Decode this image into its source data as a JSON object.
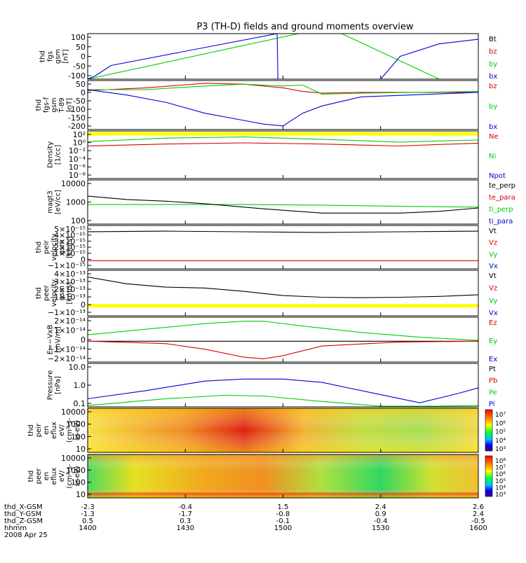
{
  "title": "P3 (TH-D) fields and ground moments overview",
  "colors": {
    "black": "#000000",
    "red": "#dd0000",
    "green": "#00cc00",
    "blue": "#0000dd",
    "yellow": "#ffff00"
  },
  "chart_data": [
    {
      "id": "fgs",
      "type": "line",
      "ylabel": [
        "thd",
        "fgs",
        "gsm",
        "[nT]"
      ],
      "yticks": [
        "100",
        "50",
        "0",
        "-50",
        "-100"
      ],
      "ylim": [
        -100,
        100
      ],
      "legend": [
        {
          "name": "Bt",
          "color": "black"
        },
        {
          "name": "bz",
          "color": "red"
        },
        {
          "name": "by",
          "color": "green"
        },
        {
          "name": "bx",
          "color": "blue"
        }
      ],
      "series": [
        {
          "name": "by",
          "color": "green",
          "x": [
            0.0,
            0.54,
            0.65,
            0.9,
            1.0
          ],
          "y": [
            -100,
            100,
            100,
            -100,
            -100
          ]
        },
        {
          "name": "bx",
          "color": "blue",
          "x": [
            0.0,
            0.02,
            0.06,
            0.485,
            0.487,
            0.49,
            0.75,
            0.8,
            0.9,
            1.0
          ],
          "y": [
            -100,
            -85,
            -40,
            100,
            -100,
            -100,
            -100,
            0,
            55,
            75
          ]
        }
      ]
    },
    {
      "id": "fgs-f",
      "type": "line",
      "ylabel": [
        "thd",
        "fgs-f",
        "gsm",
        "T-89",
        "[nT]"
      ],
      "yticks": [
        "50",
        "0",
        "-50",
        "-100",
        "-150",
        "-200"
      ],
      "ylim": [
        -210,
        60
      ],
      "legend": [
        {
          "name": "bz",
          "color": "red"
        },
        {
          "name": "by",
          "color": "green"
        },
        {
          "name": "bx",
          "color": "blue"
        }
      ],
      "series": [
        {
          "name": "bz",
          "color": "red",
          "x": [
            0,
            0.15,
            0.3,
            0.4,
            0.5,
            0.55,
            0.6,
            0.7,
            1.0
          ],
          "y": [
            5,
            20,
            45,
            40,
            20,
            0,
            -10,
            -5,
            -5
          ]
        },
        {
          "name": "by",
          "color": "green",
          "x": [
            0,
            0.15,
            0.3,
            0.4,
            0.5,
            0.55,
            0.6,
            0.7,
            1.0
          ],
          "y": [
            10,
            10,
            30,
            40,
            30,
            35,
            -15,
            -10,
            0
          ]
        },
        {
          "name": "bx",
          "color": "blue",
          "x": [
            0,
            0.1,
            0.2,
            0.3,
            0.4,
            0.45,
            0.5,
            0.55,
            0.6,
            0.7,
            1.0
          ],
          "y": [
            10,
            -20,
            -60,
            -120,
            -160,
            -180,
            -190,
            -120,
            -80,
            -30,
            -5
          ]
        }
      ]
    },
    {
      "id": "density",
      "type": "line",
      "log": true,
      "ylabel": [
        "Density",
        "[1/cc]"
      ],
      "yticks": [
        "10²",
        "10⁰",
        "10⁻²",
        "10⁻⁴",
        "10⁻⁶",
        "10⁻⁸"
      ],
      "ylim": [
        -9,
        3
      ],
      "legend": [
        {
          "name": "Ne",
          "color": "red"
        },
        {
          "name": "Ni",
          "color": "green"
        },
        {
          "name": "Npot",
          "color": "blue"
        }
      ],
      "series": [
        {
          "name": "Npot",
          "color": "yellow",
          "x": [
            0,
            1
          ],
          "y": [
            2.3,
            2.3
          ]
        },
        {
          "name": "Ni",
          "color": "green",
          "x": [
            0,
            0.2,
            0.4,
            0.6,
            0.8,
            0.9,
            1.0
          ],
          "y": [
            0.3,
            1.2,
            1.5,
            0.9,
            0.2,
            0.5,
            0.7
          ]
        },
        {
          "name": "Ne",
          "color": "red",
          "x": [
            0,
            0.2,
            0.4,
            0.6,
            0.8,
            0.9,
            1.0
          ],
          "y": [
            -0.8,
            -0.3,
            0.0,
            -0.3,
            -0.8,
            -0.4,
            -0.1
          ]
        }
      ]
    },
    {
      "id": "temp",
      "type": "line",
      "log": true,
      "ylabel": [
        "magt3",
        "[eV/cc]"
      ],
      "yticks": [
        "10000",
        "1000",
        "100"
      ],
      "ylim": [
        1.4,
        4.0
      ],
      "legend": [
        {
          "name": "te_perp",
          "color": "black"
        },
        {
          "name": "te_para",
          "color": "red"
        },
        {
          "name": "ti_perp",
          "color": "green"
        },
        {
          "name": "ti_para",
          "color": "blue"
        }
      ],
      "series": [
        {
          "name": "ti_perp",
          "color": "green",
          "x": [
            0,
            0.4,
            0.6,
            0.8,
            1.0
          ],
          "y": [
            2.55,
            2.55,
            2.52,
            2.45,
            2.4
          ]
        },
        {
          "name": "te_perp",
          "color": "black",
          "x": [
            0,
            0.1,
            0.2,
            0.3,
            0.45,
            0.6,
            0.8,
            0.9,
            1.0
          ],
          "y": [
            3.05,
            2.85,
            2.75,
            2.6,
            2.3,
            2.05,
            2.05,
            2.15,
            2.35
          ]
        }
      ]
    },
    {
      "id": "peir-vel",
      "type": "line",
      "ylabel": [
        "thd",
        "peir",
        "velocity",
        "gsm",
        "[km/s]"
      ],
      "yticks": [
        "5×10⁻¹⁵",
        "4×10⁻¹⁵",
        "3×10⁻¹⁵",
        "2×10⁻¹⁵",
        "1×10⁻¹⁵",
        "0",
        "−1×10⁻¹⁵"
      ],
      "ylim": [
        -1.3,
        5.6
      ],
      "legend": [
        {
          "name": "Vt",
          "color": "black"
        },
        {
          "name": "Vz",
          "color": "red"
        },
        {
          "name": "Vy",
          "color": "green"
        },
        {
          "name": "Vx",
          "color": "blue"
        }
      ],
      "series": [
        {
          "name": "Vt",
          "color": "black",
          "x": [
            0,
            0.2,
            0.4,
            0.6,
            0.8,
            1.0
          ],
          "y": [
            4.6,
            4.7,
            4.6,
            4.5,
            4.6,
            4.7
          ]
        },
        {
          "name": "Vz",
          "color": "red",
          "x": [
            0,
            1
          ],
          "y": [
            0,
            0
          ]
        }
      ]
    },
    {
      "id": "peer-vel",
      "type": "line",
      "ylabel": [
        "thd",
        "peer",
        "velocity",
        "gsm",
        "[km/s]"
      ],
      "yticks": [
        "4×10⁻¹³",
        "3×10⁻¹³",
        "2×10⁻¹³",
        "1×10⁻¹³",
        "0",
        "−1×10⁻¹³"
      ],
      "ylim": [
        -1.2,
        4.2
      ],
      "legend": [
        {
          "name": "Vt",
          "color": "black"
        },
        {
          "name": "Vz",
          "color": "red"
        },
        {
          "name": "Vy",
          "color": "green"
        },
        {
          "name": "Vx",
          "color": "blue"
        }
      ],
      "series": [
        {
          "name": "Vz",
          "color": "yellow",
          "x": [
            0,
            1
          ],
          "y": [
            0,
            0
          ]
        },
        {
          "name": "Vt",
          "color": "black",
          "x": [
            0,
            0.1,
            0.2,
            0.3,
            0.4,
            0.5,
            0.6,
            0.7,
            0.8,
            0.9,
            1.0
          ],
          "y": [
            3.4,
            2.6,
            2.2,
            2.1,
            1.7,
            1.2,
            1.0,
            0.95,
            1.0,
            1.1,
            1.3
          ]
        }
      ]
    },
    {
      "id": "efield",
      "type": "line",
      "ylabel": [
        "E=−VxB",
        "[mV/m]"
      ],
      "yticks": [
        "2×10⁻¹⁴",
        "1×10⁻¹⁴",
        "0",
        "−1×10⁻¹⁴",
        "−2×10⁻¹⁴"
      ],
      "ylim": [
        -2.6,
        3.0
      ],
      "legend": [
        {
          "name": "Ez",
          "color": "red"
        },
        {
          "name": "Ey",
          "color": "green"
        },
        {
          "name": "Ex",
          "color": "blue"
        }
      ],
      "series": [
        {
          "name": "zero",
          "color": "black",
          "x": [
            0,
            1
          ],
          "y": [
            0,
            0
          ]
        },
        {
          "name": "Ey",
          "color": "green",
          "x": [
            0,
            0.15,
            0.3,
            0.4,
            0.45,
            0.55,
            0.7,
            0.85,
            1.0
          ],
          "y": [
            0.8,
            1.5,
            2.2,
            2.5,
            2.5,
            1.9,
            1.1,
            0.5,
            0.1
          ]
        },
        {
          "name": "Ez",
          "color": "red",
          "x": [
            0,
            0.2,
            0.3,
            0.4,
            0.45,
            0.5,
            0.6,
            0.8,
            1.0
          ],
          "y": [
            0,
            -0.3,
            -1.0,
            -2.0,
            -2.2,
            -1.8,
            -0.6,
            -0.1,
            0
          ]
        }
      ]
    },
    {
      "id": "pressure",
      "type": "line",
      "log": true,
      "ylabel": [
        "Pressure",
        "[nPa]"
      ],
      "yticks": [
        "10.0",
        "1.0",
        "0.1"
      ],
      "ylim": [
        -1.6,
        1.6
      ],
      "legend": [
        {
          "name": "Pt",
          "color": "black"
        },
        {
          "name": "Pb",
          "color": "red"
        },
        {
          "name": "Pe",
          "color": "green"
        },
        {
          "name": "Pi",
          "color": "blue"
        }
      ],
      "series": [
        {
          "name": "Pi",
          "color": "blue",
          "x": [
            0,
            0.15,
            0.3,
            0.4,
            0.5,
            0.6,
            0.75,
            0.85,
            0.95,
            1.0
          ],
          "y": [
            -1.0,
            -0.4,
            0.3,
            0.45,
            0.45,
            0.2,
            -0.7,
            -1.3,
            -0.6,
            -0.2
          ]
        },
        {
          "name": "Pe",
          "color": "green",
          "x": [
            0,
            0.2,
            0.35,
            0.45,
            0.6,
            0.75,
            0.9,
            1.0
          ],
          "y": [
            -1.5,
            -1.0,
            -0.75,
            -0.8,
            -1.2,
            -1.55,
            -1.55,
            -1.5
          ]
        }
      ]
    },
    {
      "id": "peir-spec",
      "type": "heatmap",
      "ylabel": [
        "thd",
        "peir",
        "en",
        "eflux",
        "eV/",
        "(cm²-s-",
        "sr-eV)"
      ],
      "yticks": [
        "10000",
        "1000",
        "100",
        "10"
      ],
      "cbar_ticks": [
        "10⁷",
        "10⁶",
        "10⁵",
        "10⁴",
        "10³"
      ]
    },
    {
      "id": "peer-spec",
      "type": "heatmap",
      "ylabel": [
        "thd",
        "peer",
        "en",
        "eflux",
        "eV/",
        "(cm²-s-",
        "sr-eV)"
      ],
      "yticks": [
        "10000",
        "1000",
        "100",
        "10"
      ],
      "cbar_ticks": [
        "10⁸",
        "10⁷",
        "10⁶",
        "10⁵",
        "10⁴",
        "10³"
      ]
    }
  ],
  "ephemeris": {
    "rows": [
      {
        "label": "thd_X-GSM",
        "values": [
          "-2.3",
          "-0.4",
          "1.5",
          "2.4",
          "2.6"
        ]
      },
      {
        "label": "thd_Y-GSM",
        "values": [
          "-1.3",
          "-1.7",
          "-0.8",
          "0.9",
          "2.4"
        ]
      },
      {
        "label": "thd_Z-GSM",
        "values": [
          "0.5",
          "0.3",
          "-0.1",
          "-0.4",
          "-0.5"
        ]
      },
      {
        "label": "hhmm",
        "values": [
          "1400",
          "1430",
          "1500",
          "1530",
          "1600"
        ]
      }
    ],
    "date": "2008 Apr 25"
  }
}
